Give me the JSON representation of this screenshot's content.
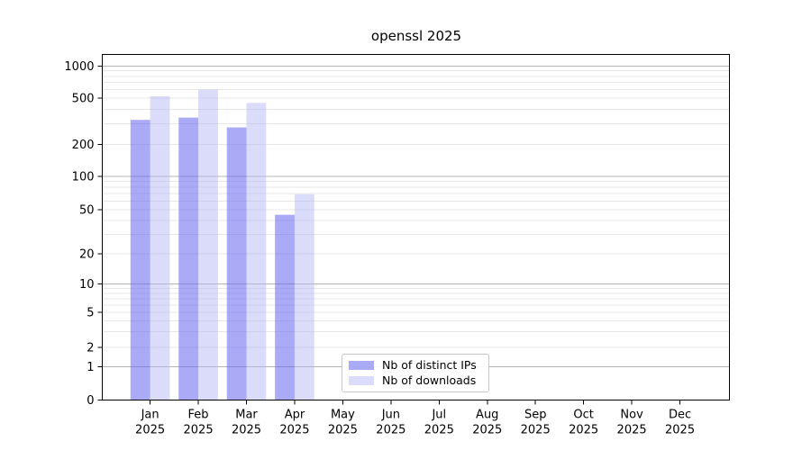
{
  "title": "openssl 2025",
  "chart_data": {
    "type": "bar",
    "title": "openssl 2025",
    "categories": [
      "Jan 2025",
      "Feb 2025",
      "Mar 2025",
      "Apr 2025",
      "May 2025",
      "Jun 2025",
      "Jul 2025",
      "Aug 2025",
      "Sep 2025",
      "Oct 2025",
      "Nov 2025",
      "Dec 2025"
    ],
    "series": [
      {
        "name": "Nb of distinct IPs",
        "color": "#a9a9f6",
        "fill": "rgba(100,100,240,0.55)",
        "values": [
          325,
          340,
          280,
          45,
          null,
          null,
          null,
          null,
          null,
          null,
          null,
          null
        ]
      },
      {
        "name": "Nb of downloads",
        "color": "#dcdcfa",
        "fill": "rgba(180,180,245,0.48)",
        "values": [
          520,
          600,
          455,
          69,
          null,
          null,
          null,
          null,
          null,
          null,
          null,
          null
        ]
      }
    ],
    "xlabel": "",
    "ylabel": "",
    "yscale": "symlog",
    "ylim": [
      0,
      1280
    ],
    "yticks": [
      0,
      1,
      2,
      5,
      10,
      20,
      50,
      100,
      200,
      500,
      1000
    ],
    "major_yticks": [
      1,
      10,
      100,
      1000
    ],
    "grid": "both",
    "legend_position": "lower center"
  },
  "colors": {
    "major_grid": "#b4b4b4",
    "minor_grid": "#e7e7e7",
    "spine": "#000000",
    "background": "#ffffff"
  }
}
